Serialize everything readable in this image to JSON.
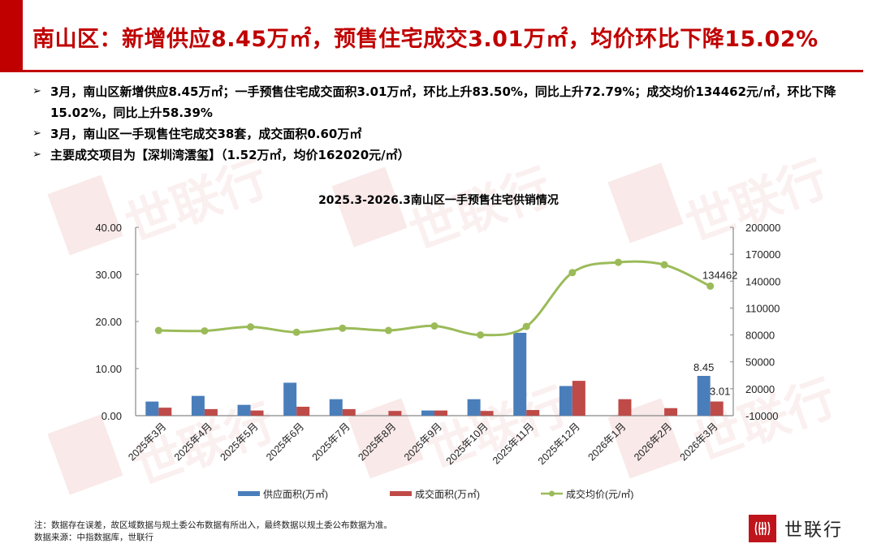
{
  "header": {
    "title": "南山区：新增供应8.45万㎡，预售住宅成交3.01万㎡，均价环比下降15.02%",
    "accent_color": "#c00000"
  },
  "bullets": [
    {
      "arrow": "➢",
      "text": "3月，南山区新增供应8.45万㎡；一手预售住宅成交面积3.01万㎡，环比上升83.50%，同比上升72.79%；成交均价134462元/㎡，环比下降15.02%，同比上升58.39%"
    },
    {
      "arrow": "➢",
      "text": "3月，南山区一手现售住宅成交38套，成交面积0.60万㎡"
    },
    {
      "arrow": "➢",
      "text": "主要成交项目为【深圳湾澐玺】（1.52万㎡，均价162020元/㎡）"
    }
  ],
  "watermark": {
    "text": "世联行"
  },
  "chart_data": {
    "type": "bar",
    "title": "2025.3-2026.3南山区一手预售住宅供销情况",
    "categories": [
      "2025年3月",
      "2025年4月",
      "2025年5月",
      "2025年6月",
      "2025年7月",
      "2025年8月",
      "2025年9月",
      "2025年10月",
      "2025年11月",
      "2025年12月",
      "2026年1月",
      "2026年2月",
      "2026年3月"
    ],
    "series": [
      {
        "name": "供应面积(万㎡)",
        "type": "bar",
        "axis": "left",
        "color": "#4a7ebb",
        "values": [
          3.0,
          4.2,
          2.3,
          7.0,
          3.5,
          0,
          1.1,
          3.5,
          17.6,
          6.3,
          0,
          0,
          8.45
        ]
      },
      {
        "name": "成交面积(万㎡)",
        "type": "bar",
        "axis": "left",
        "color": "#be4b48",
        "values": [
          1.7,
          1.4,
          1.1,
          1.9,
          1.4,
          1.0,
          1.1,
          1.0,
          1.2,
          7.4,
          3.5,
          1.6,
          3.01
        ]
      },
      {
        "name": "成交均价(元/㎡)",
        "type": "line",
        "axis": "right",
        "color": "#9bbb59",
        "values": [
          85000,
          84500,
          89000,
          83000,
          87500,
          85000,
          90000,
          80000,
          89500,
          149500,
          161000,
          158200,
          134462
        ]
      }
    ],
    "data_labels": [
      {
        "series": 0,
        "index": 12,
        "text": "8.45"
      },
      {
        "series": 1,
        "index": 12,
        "text": "3.01"
      },
      {
        "series": 2,
        "index": 12,
        "text": "134462"
      }
    ],
    "left_axis": {
      "min": 0,
      "max": 40,
      "step": 10,
      "ticks": [
        "0.00",
        "10.00",
        "20.00",
        "30.00",
        "40.00"
      ]
    },
    "right_axis": {
      "min": -10000,
      "max": 200000,
      "step": 30000,
      "ticks": [
        "-10000",
        "20000",
        "50000",
        "80000",
        "110000",
        "140000",
        "170000",
        "200000"
      ]
    },
    "xlabel": "",
    "ylabel": "",
    "grid": false,
    "legend_position": "bottom"
  },
  "footer": {
    "note": "注：数据存在误差，故区域数据与规土委公布数据有所出入，最终数据以规土委公布数据为准。",
    "source": "数据来源：中指数据库，世联行",
    "logo_text": "世联行",
    "logo_mark": "(𝍷)"
  }
}
